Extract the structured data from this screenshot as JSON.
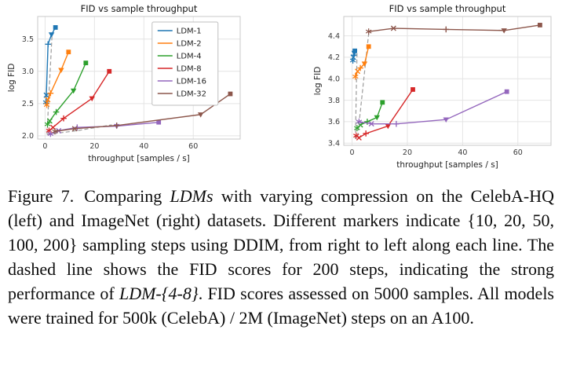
{
  "caption": {
    "label": "Figure 7.",
    "p1": "Comparing ",
    "ldms": "LDMs",
    "p2": " with varying compression on the CelebA-HQ (left) and ImageNet (right) datasets. Different markers indicate {10, 20, 50, 100, 200} sampling steps using DDIM, from right to left along each line. The dashed line shows the FID scores for 200 steps, indicating the strong performance of ",
    "ldm48": "LDM-{4-8}",
    "p3": ". FID scores assessed on 5000 samples. All models were trained for 500k (CelebA) / 2M (ImageNet) steps on an A100."
  },
  "chart_data": [
    {
      "type": "line",
      "dataset": "CelebA-HQ",
      "title": "FID vs sample throughput",
      "xlabel": "throughput [samples / s]",
      "ylabel": "log FID",
      "xlim": [
        -3,
        79
      ],
      "ylim": [
        1.95,
        3.85
      ],
      "xticks": [
        0,
        20,
        40,
        60
      ],
      "yticks": [
        2.0,
        2.5,
        3.0,
        3.5
      ],
      "grid": true,
      "legend": true,
      "legend_position": "center-right",
      "marker_steps": [
        200,
        100,
        50,
        20,
        10
      ],
      "markers": [
        "star",
        "x",
        "plus",
        "triangle",
        "square"
      ],
      "dashed_meaning": "FID scores for 200 steps",
      "dashed": [
        {
          "x": [
            0.8,
            1.5,
            2.8
          ],
          "y": [
            2.02,
            2.6,
            3.55
          ]
        },
        {
          "x": [
            0.8,
            13,
            27
          ],
          "y": [
            2.02,
            2.08,
            2.17
          ]
        }
      ],
      "series": [
        {
          "name": "LDM-1",
          "color": "#1f77b4",
          "x": [
            0.35,
            0.5,
            1.2,
            2.6,
            4.2
          ],
          "y": [
            2.52,
            2.63,
            3.42,
            3.57,
            3.68
          ]
        },
        {
          "name": "LDM-2",
          "color": "#ff7f0e",
          "x": [
            0.7,
            1.1,
            2.2,
            6.5,
            9.5
          ],
          "y": [
            2.48,
            2.56,
            2.66,
            3.02,
            3.3
          ]
        },
        {
          "name": "LDM-4",
          "color": "#2ca02c",
          "x": [
            1.0,
            1.9,
            4.5,
            11.5,
            16.5
          ],
          "y": [
            2.18,
            2.23,
            2.37,
            2.7,
            3.13
          ]
        },
        {
          "name": "LDM-8",
          "color": "#d62728",
          "x": [
            1.6,
            3.2,
            7.5,
            19,
            26
          ],
          "y": [
            2.08,
            2.13,
            2.27,
            2.58,
            3.0
          ]
        },
        {
          "name": "LDM-16",
          "color": "#9467bd",
          "x": [
            2.2,
            5.5,
            13,
            29,
            46
          ],
          "y": [
            2.03,
            2.08,
            2.13,
            2.15,
            2.21
          ]
        },
        {
          "name": "LDM-32",
          "color": "#8c564b",
          "x": [
            4,
            12,
            29,
            63,
            75
          ],
          "y": [
            2.07,
            2.11,
            2.16,
            2.33,
            2.65
          ]
        }
      ]
    },
    {
      "type": "line",
      "dataset": "ImageNet",
      "title": "FID vs sample throughput",
      "xlabel": "throughput [samples / s]",
      "ylabel": "log FID",
      "xlim": [
        -3,
        72
      ],
      "ylim": [
        3.38,
        4.58
      ],
      "xticks": [
        0,
        20,
        40,
        60
      ],
      "yticks": [
        3.4,
        3.6,
        3.8,
        4.0,
        4.2,
        4.4
      ],
      "grid": true,
      "legend": false,
      "marker_steps": [
        200,
        100,
        50,
        20,
        10
      ],
      "markers": [
        "star",
        "x",
        "plus",
        "triangle",
        "square"
      ],
      "dashed_meaning": "FID scores for 200 steps",
      "dashed": [
        {
          "x": [
            1.2,
            1.8
          ],
          "y": [
            3.44,
            4.26
          ]
        },
        {
          "x": [
            2.0,
            6.0
          ],
          "y": [
            3.46,
            4.42
          ]
        }
      ],
      "series": [
        {
          "name": "LDM-1",
          "color": "#1f77b4",
          "x": [
            0.3,
            0.45,
            0.6,
            0.8,
            1.0
          ],
          "y": [
            4.17,
            4.2,
            4.22,
            4.24,
            4.26
          ]
        },
        {
          "name": "LDM-2",
          "color": "#ff7f0e",
          "x": [
            1.2,
            2.0,
            3.0,
            4.5,
            6.0
          ],
          "y": [
            4.02,
            4.07,
            4.1,
            4.14,
            4.3
          ]
        },
        {
          "name": "LDM-4",
          "color": "#2ca02c",
          "x": [
            1.8,
            3.0,
            5.5,
            9.0,
            11.0
          ],
          "y": [
            3.54,
            3.57,
            3.6,
            3.64,
            3.78
          ]
        },
        {
          "name": "LDM-8",
          "color": "#d62728",
          "x": [
            1.5,
            2.5,
            5.0,
            13,
            22
          ],
          "y": [
            3.47,
            3.45,
            3.49,
            3.56,
            3.9
          ]
        },
        {
          "name": "LDM-16",
          "color": "#9467bd",
          "x": [
            2.5,
            7.0,
            16,
            34,
            56
          ],
          "y": [
            3.6,
            3.58,
            3.58,
            3.62,
            3.88
          ]
        },
        {
          "name": "LDM-32",
          "color": "#8c564b",
          "x": [
            6.0,
            15,
            34,
            55,
            68
          ],
          "y": [
            4.44,
            4.47,
            4.46,
            4.45,
            4.5
          ]
        }
      ]
    }
  ]
}
